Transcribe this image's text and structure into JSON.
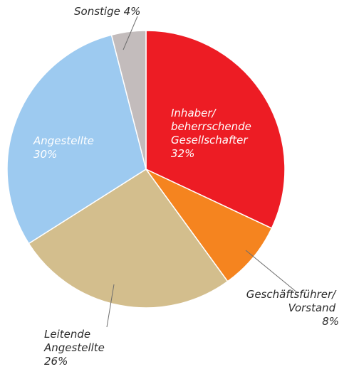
{
  "chart_data": {
    "type": "pie",
    "title": "",
    "slices": [
      {
        "label": "Inhaber/ beherrschende Gesellschafter",
        "value": 32,
        "value_label": "32%",
        "color": "#ed1c24",
        "label_lines": [
          "Inhaber/",
          "beherrschende",
          "Gesellschafter",
          "32%"
        ]
      },
      {
        "label": "Geschäftsführer/ Vorstand",
        "value": 8,
        "value_label": "8%",
        "color": "#f5841f",
        "label_lines": [
          "Geschäftsführer/",
          "Vorstand",
          "8%"
        ]
      },
      {
        "label": "Leitende Angestellte",
        "value": 26,
        "value_label": "26%",
        "color": "#d3be8d",
        "label_lines": [
          "Leitende",
          "Angestellte",
          "26%"
        ]
      },
      {
        "label": "Angestellte",
        "value": 30,
        "value_label": "30%",
        "color": "#9dcaf0",
        "label_lines": [
          "Angestellte",
          "30%"
        ]
      },
      {
        "label": "Sonstige",
        "value": 4,
        "value_label": "4%",
        "color": "#c3bcbc",
        "label_lines": [
          "Sonstige 4%"
        ]
      }
    ],
    "start_angle": "12 o'clock",
    "direction": "clockwise",
    "legend": "none"
  }
}
